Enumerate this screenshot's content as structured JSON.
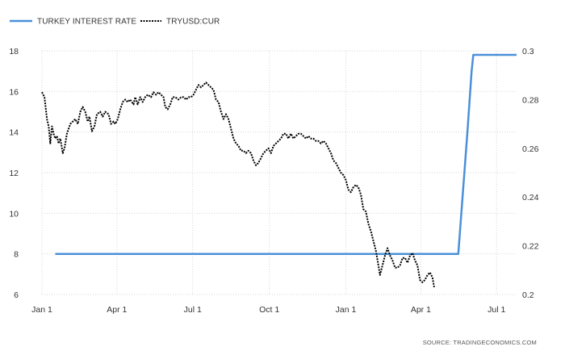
{
  "chart_data": {
    "type": "line",
    "title": "",
    "legend": {
      "placement": "top-left",
      "entries": [
        {
          "label": "TURKEY INTEREST RATE",
          "style": "solid",
          "color": "#4a90d9"
        },
        {
          "label": "TRYUSD:CUR",
          "style": "dotted",
          "color": "#000000"
        }
      ]
    },
    "source": "SOURCE: TRADINGECONOMICS.COM",
    "grid": true,
    "x_axis": {
      "range": [
        0,
        570
      ],
      "ticks": [
        {
          "label": "Jan 1",
          "day": 0
        },
        {
          "label": "Apr 1",
          "day": 90
        },
        {
          "label": "Jul 1",
          "day": 181
        },
        {
          "label": "Oct 1",
          "day": 273
        },
        {
          "label": "Jan 1",
          "day": 365
        },
        {
          "label": "Apr 1",
          "day": 455
        },
        {
          "label": "Jul 1",
          "day": 546
        }
      ]
    },
    "y_left": {
      "range": [
        6,
        18
      ],
      "ticks": [
        6,
        8,
        10,
        12,
        14,
        16,
        18
      ]
    },
    "y_right": {
      "range": [
        0.2,
        0.3
      ],
      "ticks": [
        "0.2",
        "0.22",
        "0.24",
        "0.26",
        "0.28",
        "0.3"
      ]
    },
    "series": [
      {
        "name": "TURKEY INTEREST RATE",
        "axis": "left",
        "color": "#4a90d9",
        "points": [
          [
            16,
            8.0
          ],
          [
            500,
            8.0
          ],
          [
            511,
            14.0
          ],
          [
            516,
            17.0
          ],
          [
            518,
            17.8
          ],
          [
            570,
            17.8
          ]
        ]
      },
      {
        "name": "TRYUSD:CUR",
        "axis": "right",
        "color": "#000000",
        "points": [
          [
            0,
            0.283
          ],
          [
            3,
            0.281
          ],
          [
            6,
            0.272
          ],
          [
            8,
            0.269
          ],
          [
            10,
            0.262
          ],
          [
            12,
            0.269
          ],
          [
            14,
            0.266
          ],
          [
            16,
            0.264
          ],
          [
            18,
            0.265
          ],
          [
            20,
            0.262
          ],
          [
            22,
            0.264
          ],
          [
            25,
            0.258
          ],
          [
            27,
            0.26
          ],
          [
            30,
            0.266
          ],
          [
            34,
            0.27
          ],
          [
            37,
            0.271
          ],
          [
            40,
            0.272
          ],
          [
            43,
            0.27
          ],
          [
            46,
            0.275
          ],
          [
            49,
            0.277
          ],
          [
            52,
            0.275
          ],
          [
            55,
            0.271
          ],
          [
            57,
            0.273
          ],
          [
            60,
            0.267
          ],
          [
            63,
            0.269
          ],
          [
            66,
            0.274
          ],
          [
            70,
            0.275
          ],
          [
            73,
            0.273
          ],
          [
            76,
            0.275
          ],
          [
            80,
            0.274
          ],
          [
            83,
            0.27
          ],
          [
            86,
            0.271
          ],
          [
            88,
            0.27
          ],
          [
            91,
            0.272
          ],
          [
            94,
            0.276
          ],
          [
            97,
            0.279
          ],
          [
            100,
            0.28
          ],
          [
            103,
            0.279
          ],
          [
            106,
            0.28
          ],
          [
            110,
            0.278
          ],
          [
            112,
            0.281
          ],
          [
            115,
            0.278
          ],
          [
            118,
            0.281
          ],
          [
            121,
            0.279
          ],
          [
            124,
            0.281
          ],
          [
            127,
            0.282
          ],
          [
            131,
            0.281
          ],
          [
            134,
            0.283
          ],
          [
            137,
            0.282
          ],
          [
            140,
            0.283
          ],
          [
            143,
            0.282
          ],
          [
            146,
            0.281
          ],
          [
            148,
            0.277
          ],
          [
            151,
            0.276
          ],
          [
            154,
            0.278
          ],
          [
            157,
            0.281
          ],
          [
            160,
            0.281
          ],
          [
            164,
            0.28
          ],
          [
            167,
            0.281
          ],
          [
            170,
            0.281
          ],
          [
            173,
            0.28
          ],
          [
            176,
            0.281
          ],
          [
            179,
            0.281
          ],
          [
            182,
            0.282
          ],
          [
            185,
            0.284
          ],
          [
            188,
            0.286
          ],
          [
            191,
            0.285
          ],
          [
            194,
            0.286
          ],
          [
            197,
            0.287
          ],
          [
            200,
            0.286
          ],
          [
            203,
            0.285
          ],
          [
            206,
            0.284
          ],
          [
            209,
            0.28
          ],
          [
            212,
            0.279
          ],
          [
            215,
            0.275
          ],
          [
            218,
            0.272
          ],
          [
            221,
            0.274
          ],
          [
            224,
            0.272
          ],
          [
            227,
            0.268
          ],
          [
            230,
            0.264
          ],
          [
            233,
            0.262
          ],
          [
            236,
            0.261
          ],
          [
            239,
            0.259
          ],
          [
            242,
            0.259
          ],
          [
            245,
            0.258
          ],
          [
            248,
            0.259
          ],
          [
            251,
            0.258
          ],
          [
            254,
            0.255
          ],
          [
            257,
            0.253
          ],
          [
            260,
            0.254
          ],
          [
            263,
            0.256
          ],
          [
            266,
            0.258
          ],
          [
            269,
            0.259
          ],
          [
            272,
            0.26
          ],
          [
            275,
            0.258
          ],
          [
            278,
            0.261
          ],
          [
            281,
            0.262
          ],
          [
            284,
            0.263
          ],
          [
            287,
            0.264
          ],
          [
            290,
            0.266
          ],
          [
            293,
            0.266
          ],
          [
            296,
            0.264
          ],
          [
            299,
            0.266
          ],
          [
            302,
            0.264
          ],
          [
            305,
            0.265
          ],
          [
            308,
            0.266
          ],
          [
            311,
            0.266
          ],
          [
            314,
            0.265
          ],
          [
            317,
            0.264
          ],
          [
            320,
            0.265
          ],
          [
            323,
            0.264
          ],
          [
            326,
            0.264
          ],
          [
            329,
            0.263
          ],
          [
            332,
            0.263
          ],
          [
            335,
            0.262
          ],
          [
            338,
            0.263
          ],
          [
            341,
            0.262
          ],
          [
            344,
            0.26
          ],
          [
            347,
            0.258
          ],
          [
            350,
            0.255
          ],
          [
            353,
            0.254
          ],
          [
            356,
            0.252
          ],
          [
            359,
            0.25
          ],
          [
            362,
            0.249
          ],
          [
            365,
            0.247
          ],
          [
            368,
            0.243
          ],
          [
            371,
            0.242
          ],
          [
            374,
            0.244
          ],
          [
            377,
            0.245
          ],
          [
            380,
            0.244
          ],
          [
            383,
            0.241
          ],
          [
            386,
            0.235
          ],
          [
            389,
            0.234
          ],
          [
            392,
            0.229
          ],
          [
            395,
            0.226
          ],
          [
            398,
            0.222
          ],
          [
            401,
            0.218
          ],
          [
            404,
            0.212
          ],
          [
            406,
            0.208
          ],
          [
            409,
            0.212
          ],
          [
            412,
            0.216
          ],
          [
            415,
            0.219
          ],
          [
            418,
            0.216
          ],
          [
            421,
            0.214
          ],
          [
            424,
            0.211
          ],
          [
            427,
            0.211
          ],
          [
            430,
            0.212
          ],
          [
            433,
            0.215
          ],
          [
            436,
            0.215
          ],
          [
            439,
            0.213
          ],
          [
            442,
            0.216
          ],
          [
            445,
            0.217
          ],
          [
            448,
            0.214
          ],
          [
            451,
            0.212
          ],
          [
            454,
            0.206
          ],
          [
            457,
            0.205
          ],
          [
            460,
            0.206
          ],
          [
            463,
            0.208
          ],
          [
            466,
            0.209
          ],
          [
            469,
            0.207
          ],
          [
            471,
            0.203
          ]
        ]
      }
    ]
  }
}
